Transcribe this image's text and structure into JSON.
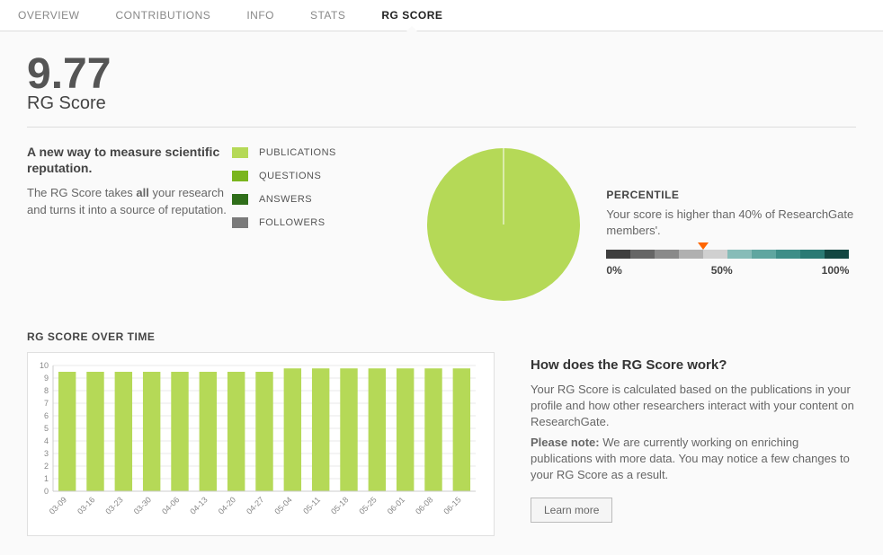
{
  "tabs": {
    "items": [
      "OVERVIEW",
      "CONTRIBUTIONS",
      "INFO",
      "STATS",
      "RG SCORE"
    ],
    "active_index": 4
  },
  "score": {
    "value": "9.77",
    "label": "RG Score"
  },
  "intro": {
    "heading": "A new way to measure scientific reputation.",
    "body_pre": "The RG Score takes ",
    "body_bold": "all",
    "body_post": " your research and turns it into a source of reputation.",
    "fontsize_heading": 14,
    "fontsize_body": 13
  },
  "legend": {
    "items": [
      {
        "label": "PUBLICATIONS",
        "color": "#b5d957"
      },
      {
        "label": "QUESTIONS",
        "color": "#7ab51d"
      },
      {
        "label": "ANSWERS",
        "color": "#2f6e1a"
      },
      {
        "label": "FOLLOWERS",
        "color": "#7a7a7a"
      }
    ]
  },
  "pie": {
    "type": "pie",
    "radius": 85,
    "background_color": "#fafafa",
    "slices": [
      {
        "label": "PUBLICATIONS",
        "value": 100,
        "color": "#b5d957"
      },
      {
        "label": "QUESTIONS",
        "value": 0,
        "color": "#7ab51d"
      },
      {
        "label": "ANSWERS",
        "value": 0,
        "color": "#2f6e1a"
      },
      {
        "label": "FOLLOWERS",
        "value": 0,
        "color": "#7a7a7a"
      }
    ],
    "divider_line_color": "#ffffff"
  },
  "percentile": {
    "heading": "PERCENTILE",
    "text": "Your score is higher than 40% of ResearchGate members'.",
    "marker_color": "#ff6600",
    "marker_percent": 40,
    "labels": [
      "0%",
      "50%",
      "100%"
    ],
    "segments": [
      "#3f3f3f",
      "#666666",
      "#8a8a8a",
      "#b0b0b0",
      "#d0d0d0",
      "#87bcb8",
      "#5fa6a0",
      "#3e8e88",
      "#2a7a74",
      "#134742"
    ]
  },
  "time_chart": {
    "type": "bar",
    "title": "RG SCORE OVER TIME",
    "categories": [
      "03-09",
      "03-16",
      "03-23",
      "03-30",
      "04-06",
      "04-13",
      "04-20",
      "04-27",
      "05-04",
      "05-11",
      "05-18",
      "05-25",
      "06-01",
      "06-08",
      "06-15"
    ],
    "values": [
      9.5,
      9.5,
      9.5,
      9.5,
      9.5,
      9.5,
      9.5,
      9.5,
      9.77,
      9.77,
      9.77,
      9.77,
      9.77,
      9.77,
      9.77
    ],
    "bar_color": "#b5d957",
    "ylim": [
      0,
      10
    ],
    "ytick_step": 1,
    "background_color": "#ffffff",
    "grid_color": "#e8e8e8",
    "axis_color": "#ccc",
    "label_fontsize": 9,
    "label_color": "#888",
    "bar_width_ratio": 0.62,
    "chart_inner_width": 470,
    "chart_inner_height": 140,
    "x_label_rotate_deg": -45
  },
  "explain": {
    "heading": "How does the RG Score work?",
    "p1": "Your RG Score is calculated based on the publications in your profile and how other researchers interact with your content on ResearchGate.",
    "note_label": "Please note:",
    "note_body": " We are currently working on enriching publications with more data. You may notice a few changes to your RG Score as a result.",
    "learn_more": "Learn more"
  }
}
